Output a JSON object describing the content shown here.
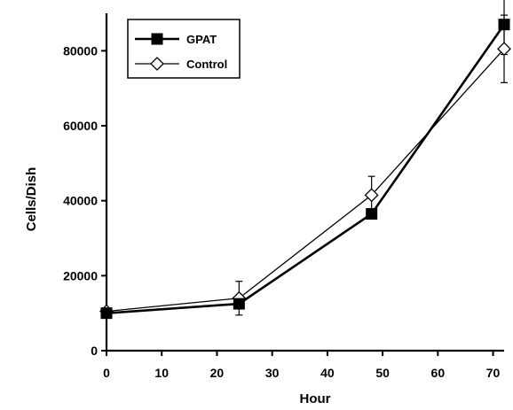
{
  "chart_data": {
    "type": "line",
    "title": "",
    "xlabel": "Hour",
    "ylabel": "Cells/Dish",
    "xlim": [
      0,
      72
    ],
    "ylim": [
      0,
      90000
    ],
    "x_ticks": [
      0,
      10,
      20,
      30,
      40,
      50,
      60,
      70
    ],
    "y_ticks": [
      0,
      20000,
      40000,
      60000,
      80000
    ],
    "grid": false,
    "legend_position": "top-left",
    "series": [
      {
        "name": "GPAT",
        "marker": "filled-square",
        "color": "#000000",
        "x": [
          0,
          24,
          48,
          72
        ],
        "y": [
          10000,
          12500,
          36500,
          87000
        ],
        "error": [
          0,
          1000,
          0,
          8000
        ]
      },
      {
        "name": "Control",
        "marker": "open-diamond",
        "color": "#000000",
        "x": [
          0,
          24,
          48,
          72
        ],
        "y": [
          10500,
          14000,
          41500,
          80500
        ],
        "error": [
          0,
          4500,
          5000,
          9000
        ]
      }
    ]
  }
}
